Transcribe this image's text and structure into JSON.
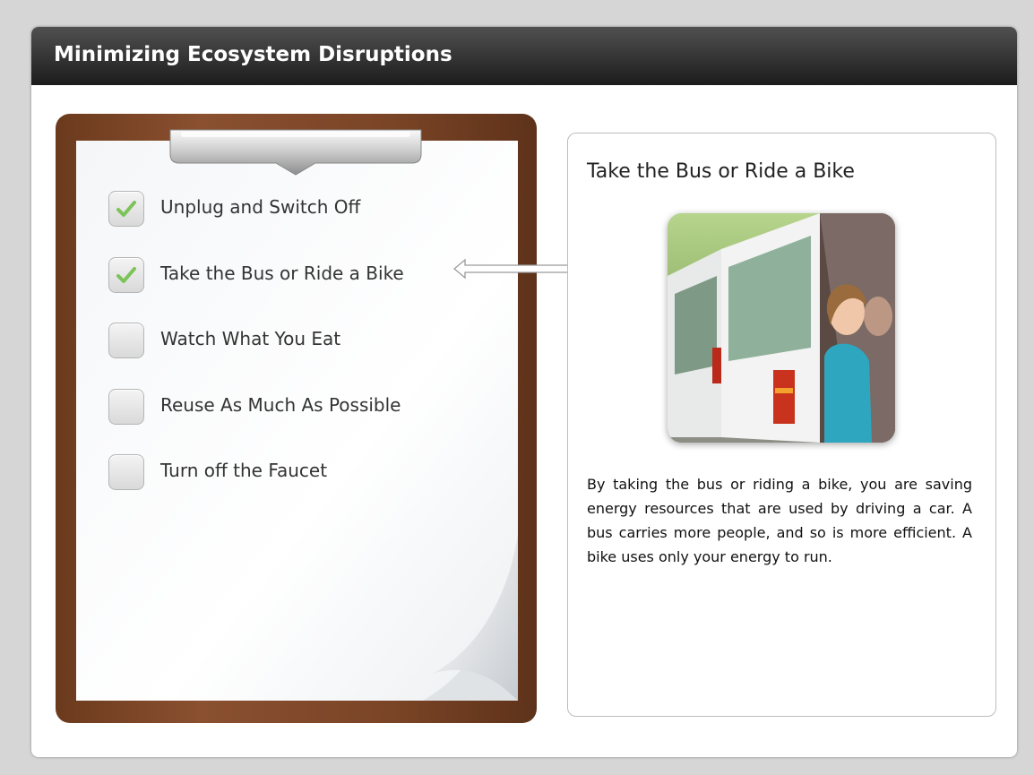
{
  "header": {
    "title": "Minimizing Ecosystem Disruptions"
  },
  "checklist": {
    "items": [
      {
        "label": "Unplug and Switch Off",
        "checked": true
      },
      {
        "label": "Take the Bus or Ride a Bike",
        "checked": true
      },
      {
        "label": "Watch What You Eat",
        "checked": false
      },
      {
        "label": "Reuse As Much As Possible",
        "checked": false
      },
      {
        "label": "Turn off the Faucet",
        "checked": false
      }
    ]
  },
  "detail": {
    "title": "Take the Bus or Ride a Bike",
    "body": "By taking the bus or riding a bike, you are saving energy resources that are used by driving a car. A bus carries more people, and so is more efficient. A bike uses only your energy to run."
  }
}
